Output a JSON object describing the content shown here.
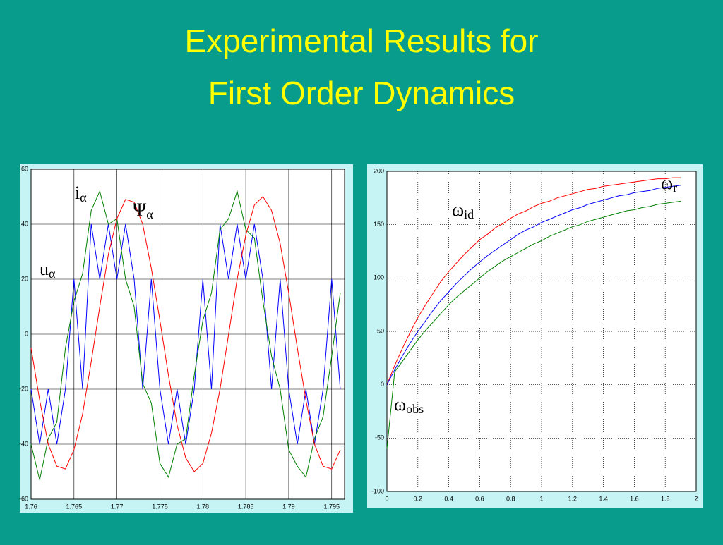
{
  "slide": {
    "title": [
      "Experimental Results for",
      "First Order Dynamics"
    ]
  },
  "chart_data": [
    {
      "type": "line",
      "grid": true,
      "grid_style": "solid",
      "xlim": [
        1.76,
        1.7965
      ],
      "ylim": [
        -60,
        60
      ],
      "xticks": [
        1.76,
        1.765,
        1.77,
        1.775,
        1.78,
        1.785,
        1.79,
        1.795
      ],
      "yticks": [
        -60,
        -40,
        -20,
        0,
        20,
        40,
        60
      ],
      "x": [
        1.76,
        1.761,
        1.762,
        1.763,
        1.764,
        1.765,
        1.766,
        1.767,
        1.768,
        1.769,
        1.77,
        1.771,
        1.772,
        1.773,
        1.774,
        1.775,
        1.776,
        1.777,
        1.778,
        1.779,
        1.78,
        1.781,
        1.782,
        1.783,
        1.784,
        1.785,
        1.786,
        1.787,
        1.788,
        1.789,
        1.79,
        1.791,
        1.792,
        1.793,
        1.794,
        1.795,
        1.796
      ],
      "series": [
        {
          "color": "#0000ff",
          "values": [
            -20,
            -40,
            -20,
            -40,
            -20,
            20,
            -20,
            40,
            20,
            40,
            20,
            40,
            20,
            -20,
            20,
            -20,
            -40,
            -20,
            -40,
            -20,
            20,
            -20,
            40,
            20,
            40,
            20,
            40,
            20,
            -20,
            20,
            -20,
            -40,
            -20,
            -40,
            -20,
            20,
            -20
          ]
        },
        {
          "color": "#008000",
          "values": [
            -40,
            -53,
            -38,
            -32,
            -5,
            12,
            22,
            45,
            52,
            40,
            42,
            20,
            10,
            -18,
            -25,
            -47,
            -52,
            -40,
            -38,
            -15,
            5,
            15,
            38,
            42,
            52,
            38,
            35,
            12,
            -8,
            -20,
            -42,
            -48,
            -52,
            -38,
            -30,
            -8,
            15
          ]
        },
        {
          "color": "#ff0000",
          "values": [
            -5,
            -24,
            -40,
            -48,
            -49,
            -42,
            -29,
            -10,
            10,
            29,
            42,
            49,
            48,
            40,
            24,
            5,
            -15,
            -33,
            -45,
            -50,
            -47,
            -36,
            -20,
            0,
            20,
            36,
            47,
            50,
            45,
            33,
            15,
            -5,
            -24,
            -40,
            -48,
            -49,
            -42
          ]
        }
      ],
      "annotations": [
        {
          "text": "i",
          "sub": "α"
        },
        {
          "text": "Ψ",
          "sub": "α"
        },
        {
          "text": "u",
          "sub": "α"
        }
      ]
    },
    {
      "type": "line",
      "grid": true,
      "grid_style": "dotted",
      "xlim": [
        0,
        2
      ],
      "ylim": [
        -100,
        200
      ],
      "xticks": [
        0,
        0.2,
        0.4,
        0.6,
        0.8,
        1,
        1.2,
        1.4,
        1.6,
        1.8,
        2
      ],
      "yticks": [
        -100,
        -50,
        0,
        50,
        100,
        150,
        200
      ],
      "x": [
        0,
        0.05,
        0.1,
        0.15,
        0.2,
        0.25,
        0.3,
        0.35,
        0.4,
        0.45,
        0.5,
        0.55,
        0.6,
        0.65,
        0.7,
        0.75,
        0.8,
        0.85,
        0.9,
        0.95,
        1,
        1.05,
        1.1,
        1.15,
        1.2,
        1.25,
        1.3,
        1.35,
        1.4,
        1.45,
        1.5,
        1.55,
        1.6,
        1.65,
        1.7,
        1.75,
        1.8,
        1.85,
        1.9
      ],
      "series": [
        {
          "color": "#ff0000",
          "values": [
            0,
            18,
            34,
            49,
            63,
            75,
            86,
            97,
            106,
            114,
            122,
            129,
            136,
            141,
            147,
            151,
            156,
            160,
            163,
            167,
            170,
            172,
            175,
            177,
            179,
            181,
            183,
            184,
            186,
            187,
            188,
            189,
            190,
            191,
            192,
            193,
            193,
            194,
            194
          ]
        },
        {
          "color": "#0000ff",
          "values": [
            0,
            14,
            27,
            39,
            50,
            60,
            70,
            79,
            87,
            95,
            102,
            109,
            115,
            121,
            126,
            131,
            136,
            141,
            145,
            148,
            152,
            155,
            158,
            161,
            164,
            166,
            169,
            171,
            173,
            175,
            177,
            178,
            180,
            181,
            182,
            184,
            185,
            186,
            187
          ]
        },
        {
          "color": "#008000",
          "values": [
            -60,
            12,
            22,
            32,
            42,
            51,
            59,
            67,
            75,
            82,
            88,
            94,
            100,
            106,
            111,
            116,
            120,
            124,
            128,
            132,
            135,
            139,
            142,
            145,
            148,
            150,
            153,
            155,
            157,
            159,
            161,
            163,
            164,
            166,
            167,
            169,
            170,
            171,
            172
          ]
        }
      ],
      "annotations": [
        {
          "text": "ω",
          "sub": "r"
        },
        {
          "text": "ω",
          "sub": "id"
        },
        {
          "text": "ω",
          "sub": "obs"
        }
      ]
    }
  ]
}
